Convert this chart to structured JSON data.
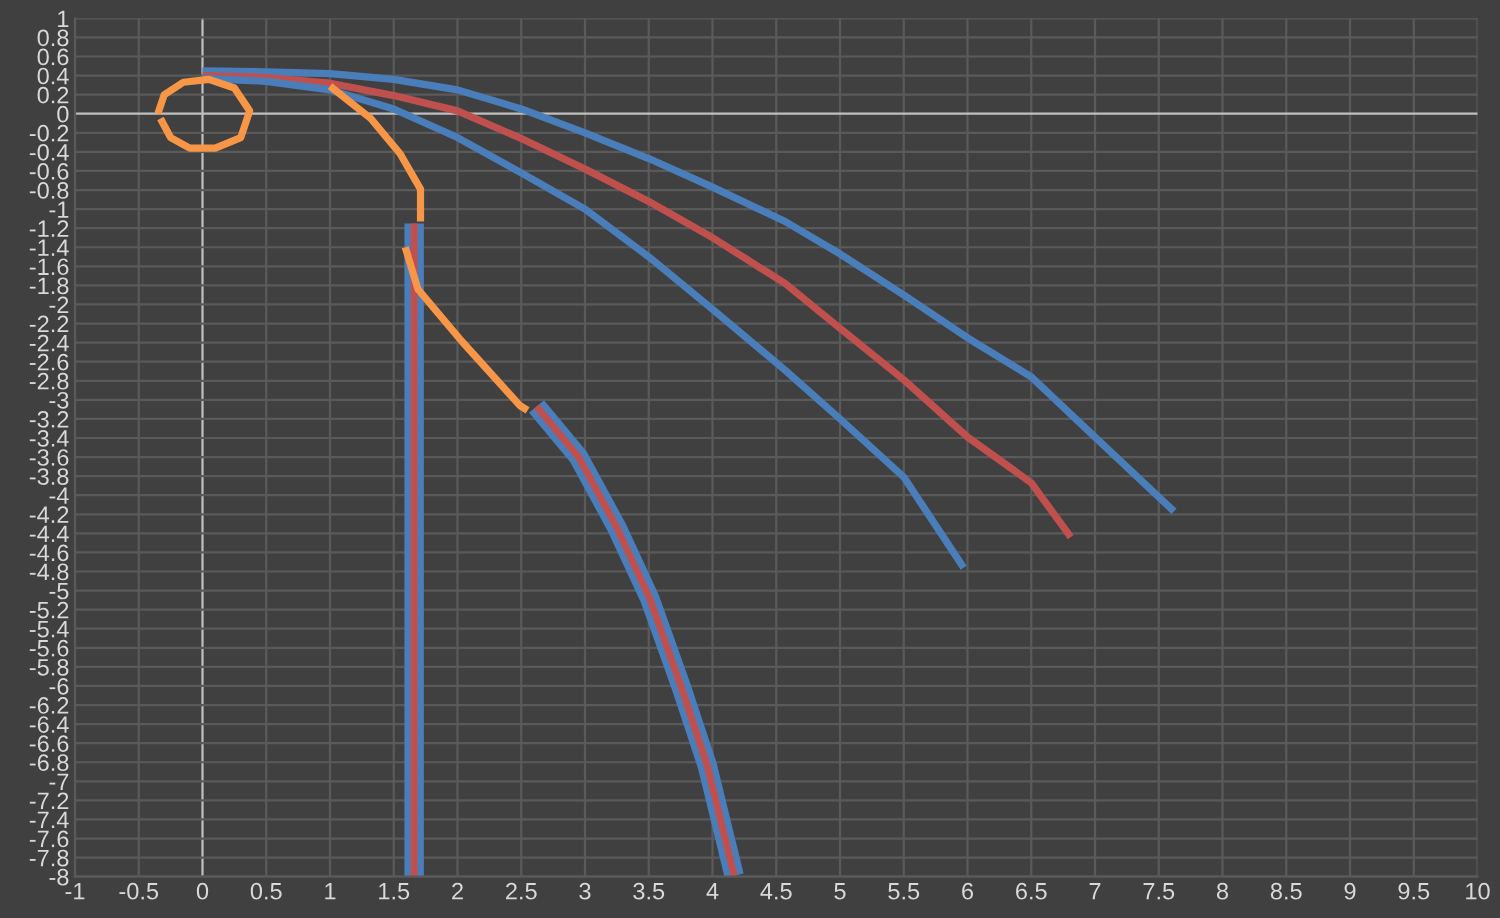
{
  "chart_data": {
    "type": "line",
    "series": [
      {
        "color": "#4a7ebb",
        "x": [
          0,
          0.5,
          1,
          1.5,
          2,
          2.5,
          3,
          3.5,
          4,
          4.57,
          5,
          5.5,
          6,
          6.5,
          7,
          7.62
        ],
        "values": [
          0.45,
          0.44,
          0.42,
          0.36,
          0.25,
          0.05,
          -0.2,
          -0.47,
          -0.77,
          -1.13,
          -1.47,
          -1.9,
          -2.35,
          -2.76,
          -3.39,
          -4.17
        ]
      },
      {
        "color": "#c0504d",
        "x": [
          0,
          0.5,
          1,
          1.5,
          2,
          2.5,
          3,
          3.5,
          4,
          4.57,
          5,
          5.5,
          6,
          6.5,
          6.81
        ],
        "values": [
          0.4,
          0.38,
          0.32,
          0.19,
          0.03,
          -0.26,
          -0.58,
          -0.92,
          -1.3,
          -1.78,
          -2.25,
          -2.79,
          -3.39,
          -3.87,
          -4.44
        ]
      },
      {
        "color": "#4a7ebb",
        "x": [
          0,
          0.5,
          1,
          1.5,
          2,
          2.5,
          3,
          3.5,
          4,
          4.57,
          5,
          5.5,
          5.97
        ],
        "values": [
          0.37,
          0.34,
          0.25,
          0.05,
          -0.25,
          -0.62,
          -1.0,
          -1.5,
          -2.05,
          -2.69,
          -3.2,
          -3.81,
          -4.76
        ]
      },
      {
        "color": "#4a7ebb",
        "x": [
          1.66,
          1.66
        ],
        "values": [
          -1.15,
          -8
        ]
      },
      {
        "color": "#c0504d",
        "x": [
          1.66,
          1.66
        ],
        "values": [
          -1.15,
          -8
        ]
      },
      {
        "color": "#4a7ebb",
        "x": [
          2.62,
          2.95,
          3.25,
          3.51,
          3.76,
          3.96,
          4.17
        ],
        "values": [
          -3.07,
          -3.6,
          -4.34,
          -5.09,
          -6.03,
          -6.84,
          -7.99
        ]
      },
      {
        "color": "#c0504d",
        "x": [
          2.62,
          2.95,
          3.25,
          3.51,
          3.76,
          3.96,
          4.17
        ],
        "values": [
          -3.07,
          -3.6,
          -4.34,
          -5.09,
          -6.03,
          -6.84,
          -7.99
        ]
      },
      {
        "color": "#f79646",
        "x": [
          -0.35,
          -0.3,
          -0.15,
          0.05,
          0.25,
          0.37,
          0.3,
          0.1,
          -0.1,
          -0.25,
          -0.33
        ],
        "values": [
          0,
          0.2,
          0.33,
          0.36,
          0.27,
          0.03,
          -0.25,
          -0.36,
          -0.36,
          -0.25,
          -0.05
        ]
      },
      {
        "color": "#f79646",
        "x": [
          1.0,
          1.32,
          1.55,
          1.71,
          1.71
        ],
        "values": [
          0.29,
          -0.05,
          -0.42,
          -0.79,
          -1.13
        ]
      },
      {
        "color": "#f79646",
        "x": [
          1.59,
          1.69,
          2.03,
          2.49,
          2.55
        ],
        "values": [
          -1.4,
          -1.84,
          -2.38,
          -3.06,
          -3.11
        ]
      }
    ],
    "xlim": [
      -1,
      10
    ],
    "xticks": [
      -1,
      -0.5,
      0,
      0.5,
      1,
      1.5,
      2,
      2.5,
      3,
      3.5,
      4,
      4.5,
      5,
      5.5,
      6,
      6.5,
      7,
      7.5,
      8,
      8.5,
      9,
      9.5,
      10
    ],
    "ylim": [
      -8,
      1
    ],
    "yticks": [
      -8,
      -7.8,
      -7.6,
      -7.4,
      -7.2,
      -7,
      -6.8,
      -6.6,
      -6.4,
      -6.2,
      -6,
      -5.8,
      -5.6,
      -5.4,
      -5.2,
      -5,
      -4.8,
      -4.6,
      -4.4,
      -4.2,
      -4,
      -3.8,
      -3.6,
      -3.4,
      -3.2,
      -3,
      -2.8,
      -2.6,
      -2.4,
      -2.2,
      -2,
      -1.8,
      -1.6,
      -1.4,
      -1.2,
      -1,
      -0.8,
      -0.6,
      -0.4,
      -0.2,
      0,
      0.2,
      0.4,
      0.6,
      0.8,
      1
    ],
    "grid": true,
    "line_style": "solid",
    "legend": false
  }
}
